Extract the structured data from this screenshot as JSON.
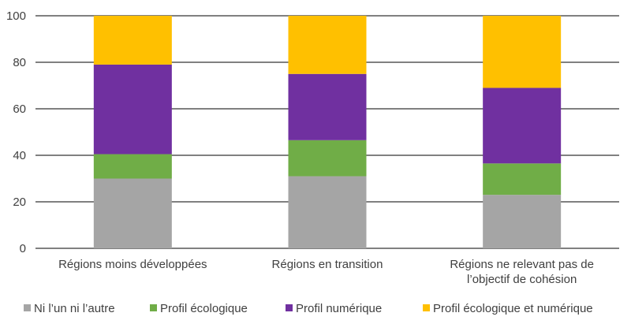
{
  "chart_data": {
    "type": "bar",
    "stacked": true,
    "title": "",
    "xlabel": "",
    "ylabel": "",
    "ylim": [
      0,
      100
    ],
    "yticks": [
      0,
      20,
      40,
      60,
      80,
      100
    ],
    "grid": true,
    "legend_position": "bottom",
    "categories": [
      [
        "Régions moins développées"
      ],
      [
        "Régions en transition"
      ],
      [
        "Régions ne relevant pas de",
        "l’objectif de cohésion"
      ]
    ],
    "series": [
      {
        "name": "Ni l’un ni l’autre",
        "color": "#A5A5A5",
        "values": [
          30,
          31,
          23
        ]
      },
      {
        "name": "Profil écologique",
        "color": "#70AD47",
        "values": [
          10.5,
          15.5,
          13.5
        ]
      },
      {
        "name": "Profil numérique",
        "color": "#7030A0",
        "values": [
          38.5,
          28.5,
          32.5
        ]
      },
      {
        "name": "Profil écologique et numérique",
        "color": "#FFC000",
        "values": [
          21,
          25,
          31
        ]
      }
    ]
  }
}
